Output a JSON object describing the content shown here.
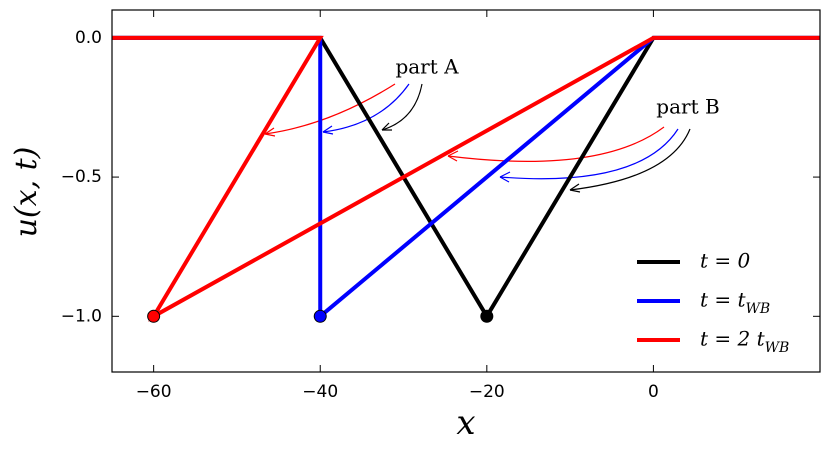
{
  "chart_data": {
    "type": "line",
    "xlabel": "x",
    "ylabel": "u(x, t)",
    "xlim": [
      -65,
      20
    ],
    "ylim": [
      -1.2,
      0.1
    ],
    "xticks": [
      {
        "value": -60,
        "label": "−60"
      },
      {
        "value": -40,
        "label": "−40"
      },
      {
        "value": -20,
        "label": "−20"
      },
      0
    ],
    "yticks": [
      {
        "value": 0,
        "label": "0.0"
      },
      {
        "value": -0.5,
        "label": "−0.5"
      },
      {
        "value": -1,
        "label": "−1.0"
      }
    ],
    "legend": "lower right",
    "annotations": [
      "part A",
      "part B"
    ],
    "series": [
      {
        "name": "t = 0",
        "color": "#000000",
        "x": [
          -65,
          -40,
          -20,
          0,
          20
        ],
        "values": [
          0,
          0,
          -1,
          0,
          0
        ]
      },
      {
        "name": "t = t_WB",
        "color": "#0000ff",
        "x": [
          -65,
          -40,
          -40,
          0,
          20
        ],
        "values": [
          0,
          0,
          -1,
          0,
          0
        ]
      },
      {
        "name": "t = 2 t_WB",
        "color": "#ff0000",
        "x": [
          -65,
          -40,
          -60,
          0,
          20
        ],
        "values": [
          0,
          0,
          -1,
          0,
          0
        ]
      }
    ]
  }
}
